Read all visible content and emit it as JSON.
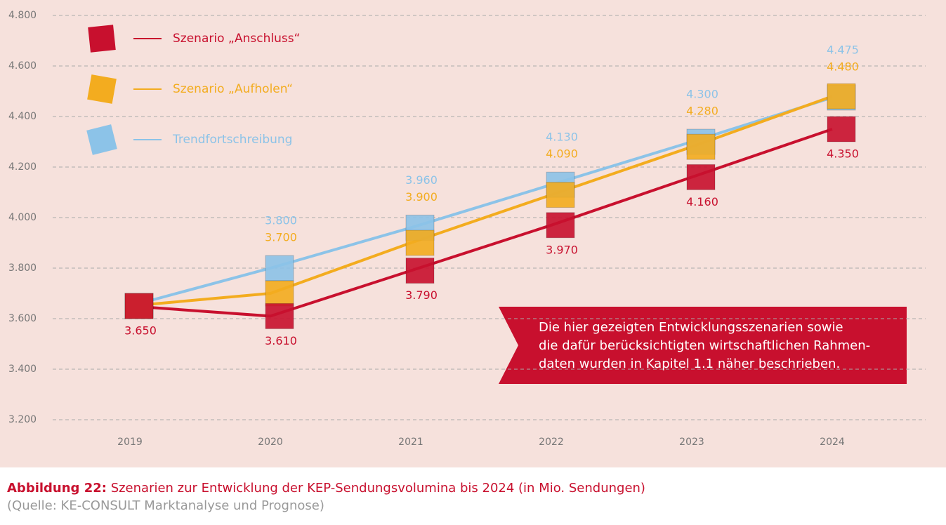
{
  "chart_data": {
    "type": "line",
    "categories": [
      "2019",
      "2020",
      "2021",
      "2022",
      "2023",
      "2024"
    ],
    "series": [
      {
        "name": "Szenario „Anschluss“",
        "color": "#c8102e",
        "values": [
          3650,
          3610,
          3790,
          3970,
          4160,
          4350
        ],
        "value_labels": [
          "3.650",
          "3.610",
          "3.790",
          "3.970",
          "4.160",
          "4.350"
        ]
      },
      {
        "name": "Szenario „Aufholen“",
        "color": "#f3ac1f",
        "values": [
          3650,
          3700,
          3900,
          4090,
          4280,
          4480
        ],
        "value_labels": [
          null,
          "3.700",
          "3.900",
          "4.090",
          "4.280",
          "4.480"
        ]
      },
      {
        "name": "Trendfortschreibung",
        "color": "#8cc3e8",
        "values": [
          3650,
          3800,
          3960,
          4130,
          4300,
          4475
        ],
        "value_labels": [
          null,
          "3.800",
          "3.960",
          "4.130",
          "4.300",
          "4.475"
        ]
      }
    ],
    "ylim": [
      3200,
      4800
    ],
    "yticks": [
      {
        "value": 3200,
        "label": "3.200"
      },
      {
        "value": 3400,
        "label": "3.400"
      },
      {
        "value": 3600,
        "label": "3.600"
      },
      {
        "value": 3800,
        "label": "3.800"
      },
      {
        "value": 4000,
        "label": "4.000"
      },
      {
        "value": 4200,
        "label": "4.200"
      },
      {
        "value": 4400,
        "label": "4.400"
      },
      {
        "value": 4600,
        "label": "4.600"
      },
      {
        "value": 4800,
        "label": "4.800"
      }
    ],
    "grid": true,
    "annotation": [
      "Die hier gezeigten Entwicklungsszenarien sowie",
      "die dafür berücksichtigten wirtschaftlichen Rahmen-",
      "daten wurden in Kapitel 1.1 näher beschrieben."
    ],
    "caption_label": "Abbildung 22:",
    "title": "Szenarien zur Entwicklung der KEP-Sendungsvolumina bis 2024 (in Mio. Sendungen)",
    "source": "(Quelle: KE-CONSULT Marktanalyse und Prognose)"
  }
}
